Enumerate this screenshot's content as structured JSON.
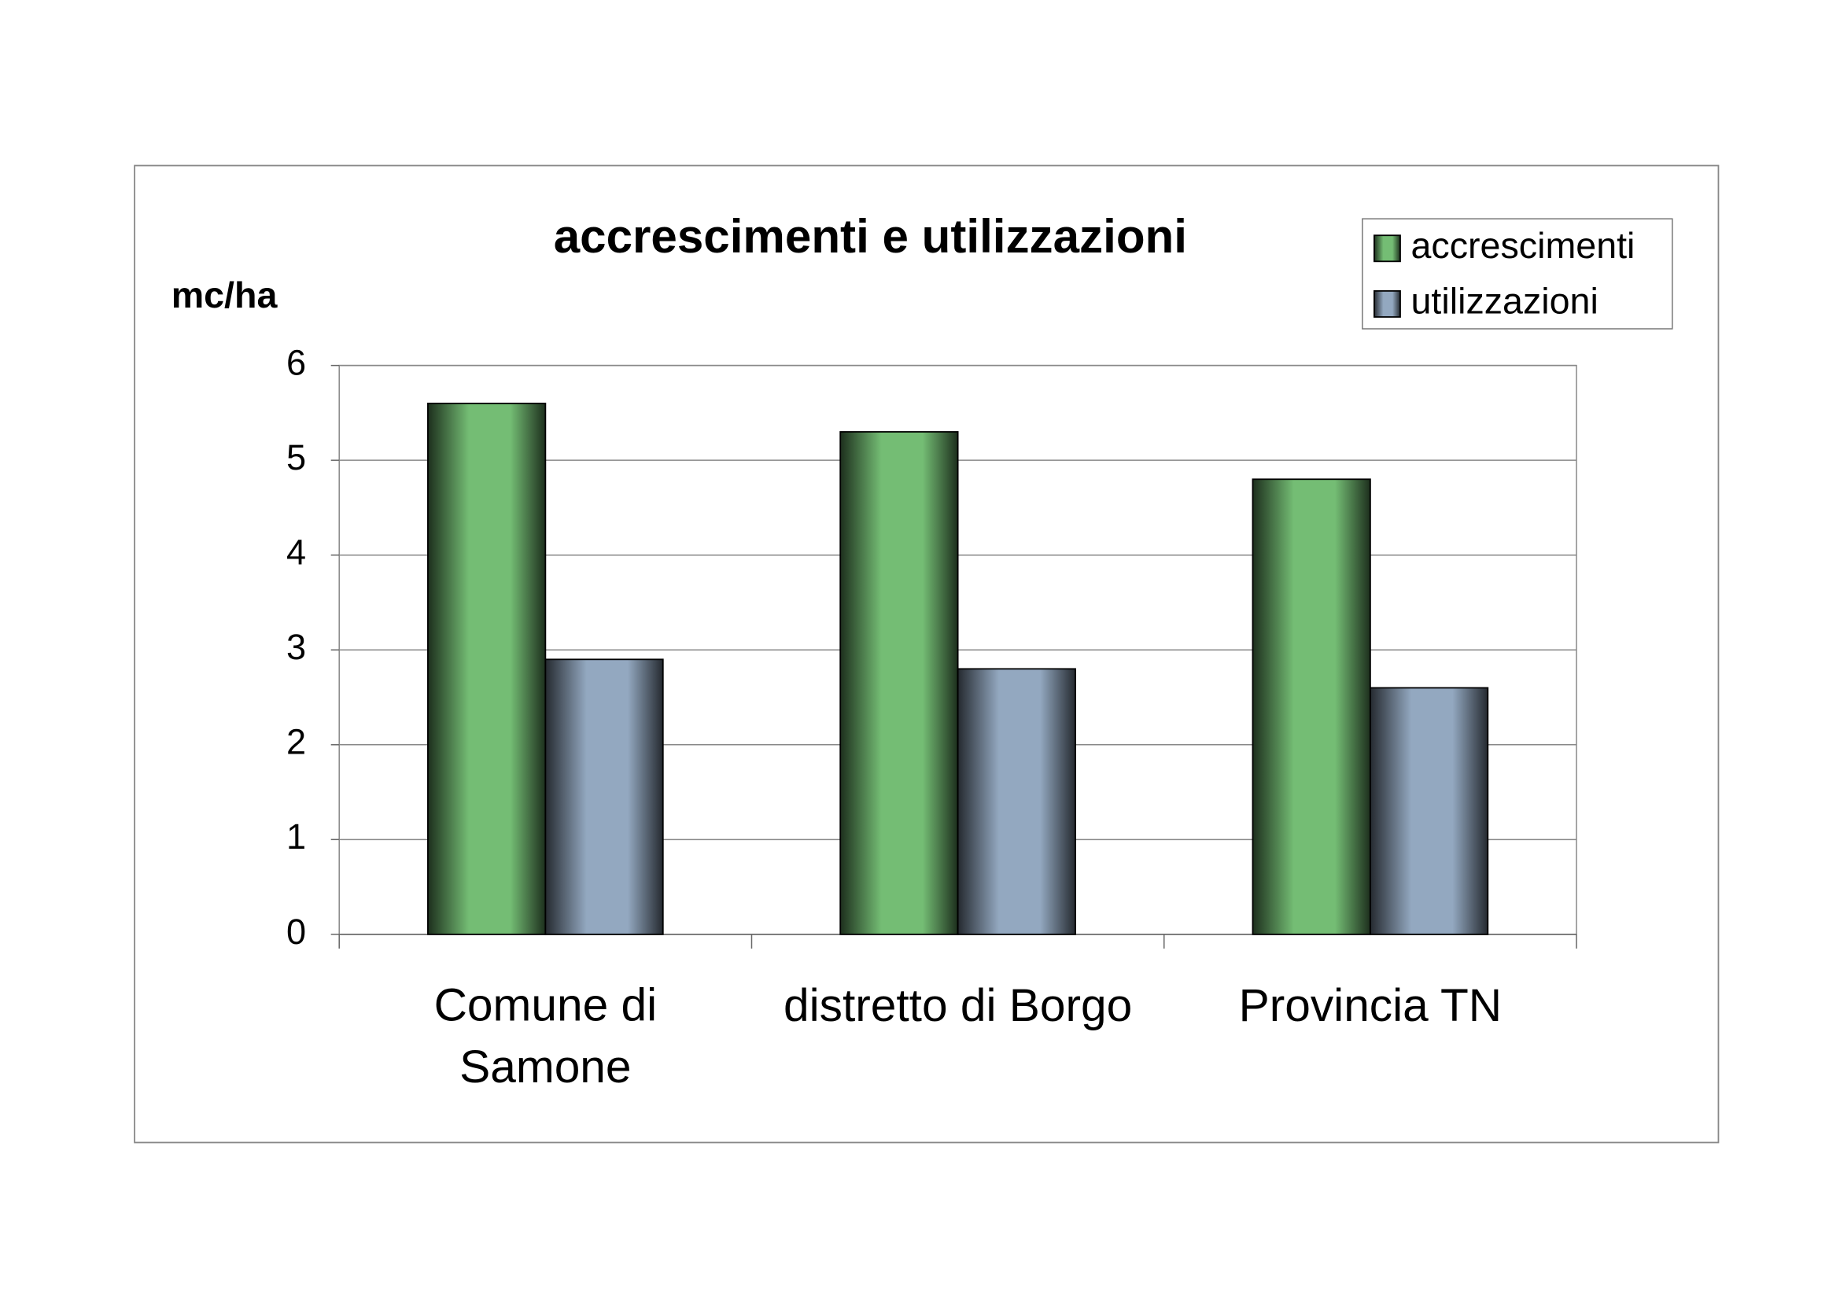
{
  "chart_data": {
    "type": "bar",
    "title": "accrescimenti e utilizzazioni",
    "y_label": "mc/ha",
    "categories": [
      "Comune di Samone",
      "distretto di Borgo",
      "Provincia TN"
    ],
    "series": [
      {
        "name": "accrescimenti",
        "color": "#74bd74",
        "values": [
          5.6,
          5.3,
          4.8
        ]
      },
      {
        "name": "utilizzazioni",
        "color": "#93a8c0",
        "values": [
          2.9,
          2.8,
          2.6
        ]
      }
    ],
    "ylim": [
      0,
      6
    ],
    "yticks": [
      0,
      1,
      2,
      3,
      4,
      5,
      6
    ],
    "grid": true,
    "legend": "top-right"
  }
}
